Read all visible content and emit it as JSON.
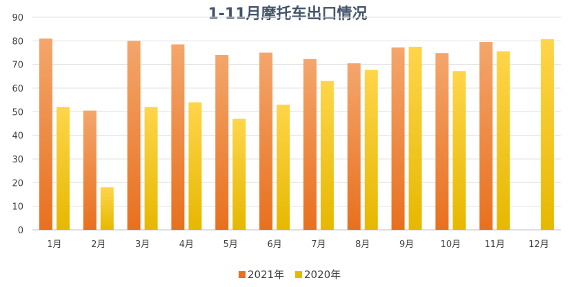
{
  "chart_data": {
    "type": "bar",
    "title": "1-11月摩托车出口情况",
    "categories": [
      "1月",
      "2月",
      "3月",
      "4月",
      "5月",
      "6月",
      "7月",
      "8月",
      "9月",
      "10月",
      "11月",
      "12月"
    ],
    "series": [
      {
        "name": "2021年",
        "values": [
          81,
          50.5,
          80,
          78.5,
          74,
          75,
          72.3,
          70.5,
          77.2,
          74.8,
          79.5,
          null
        ]
      },
      {
        "name": "2020年",
        "values": [
          52,
          18,
          52,
          54,
          47,
          53,
          63,
          67.7,
          77.5,
          67.2,
          75.6,
          80.7
        ]
      }
    ],
    "ylim": [
      0,
      90
    ],
    "yticks": [
      0,
      10,
      20,
      30,
      40,
      50,
      60,
      70,
      80,
      90
    ],
    "grid": true,
    "legend": "bottom",
    "colors": {
      "2021年": {
        "top": "#f4a66c",
        "bottom": "#e8701e"
      },
      "2020年": {
        "top": "#ffd54a",
        "bottom": "#e6b800"
      }
    }
  }
}
